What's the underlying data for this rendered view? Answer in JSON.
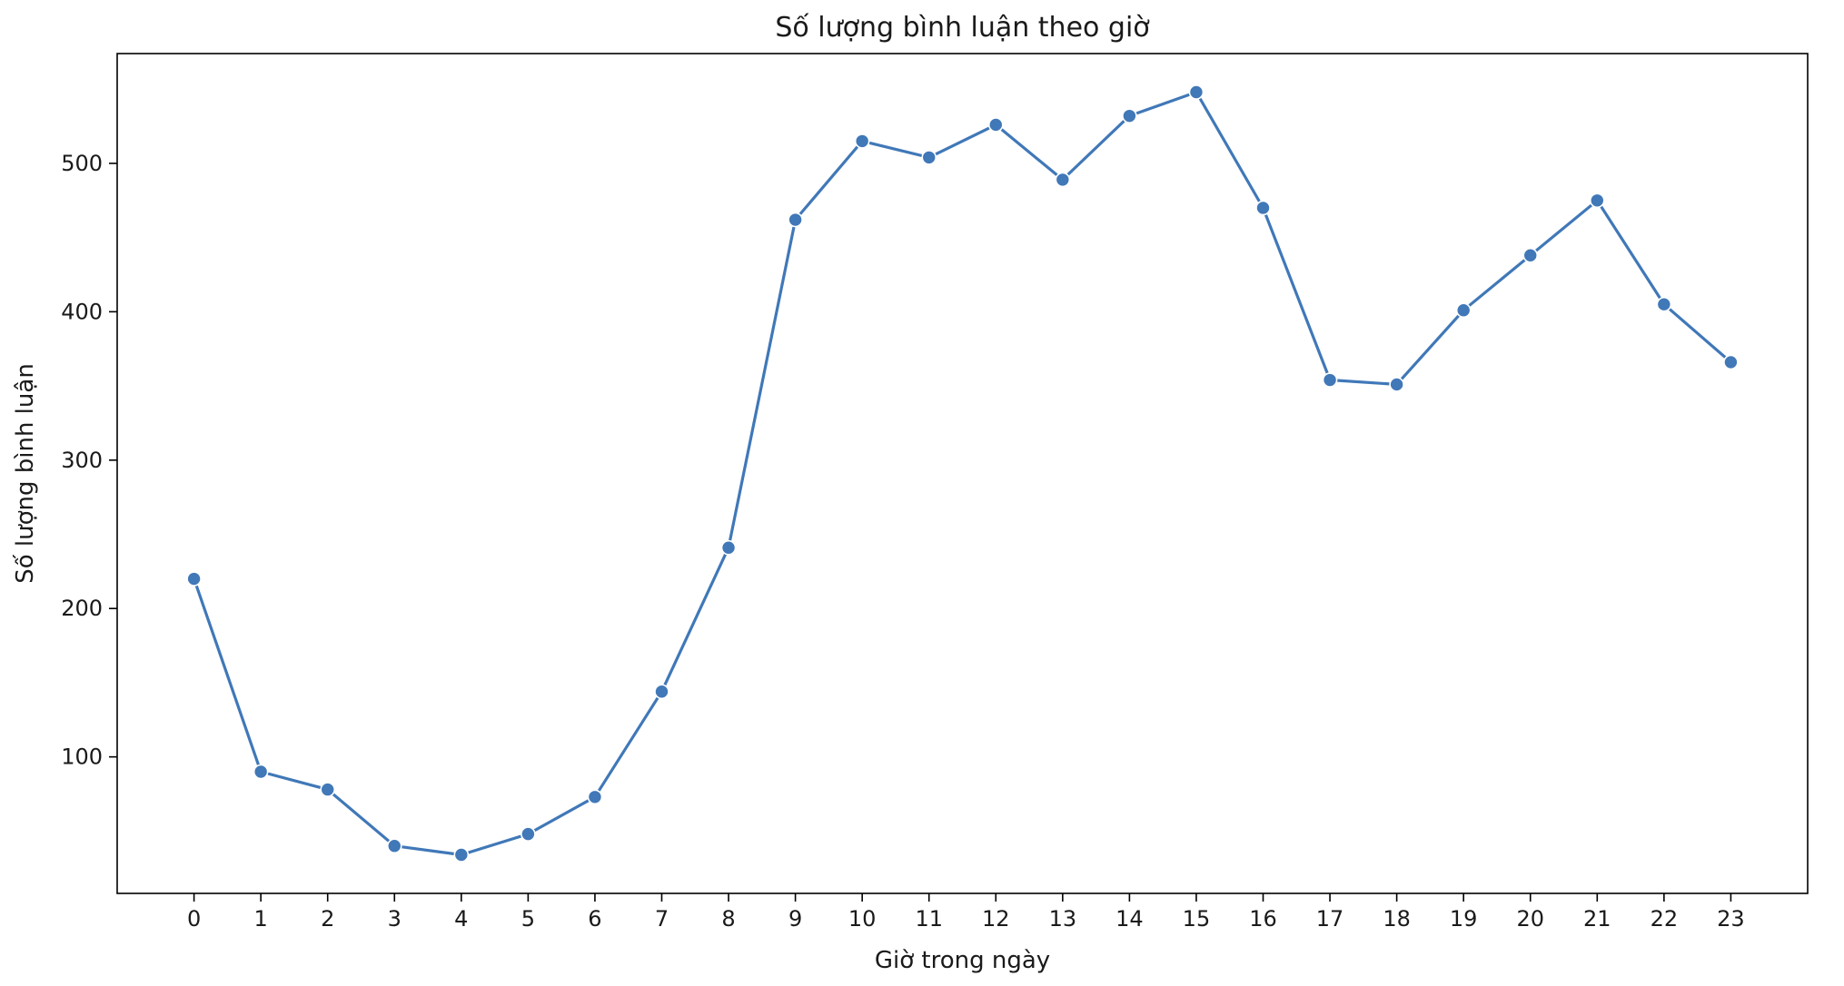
{
  "chart_data": {
    "type": "line",
    "title": "Số lượng bình luận theo giờ",
    "xlabel": "Giờ trong ngày",
    "ylabel": "Số lượng bình luận",
    "x": [
      "0",
      "1",
      "2",
      "3",
      "4",
      "5",
      "6",
      "7",
      "8",
      "9",
      "10",
      "11",
      "12",
      "13",
      "14",
      "15",
      "16",
      "17",
      "18",
      "19",
      "20",
      "21",
      "22",
      "23"
    ],
    "series": [
      {
        "values": [
          220,
          90,
          78,
          40,
          34,
          48,
          73,
          144,
          241,
          462,
          515,
          504,
          526,
          489,
          532,
          548,
          470,
          354,
          351,
          401,
          438,
          475,
          405,
          366
        ],
        "color": "#4078b8"
      }
    ],
    "yticks": [
      "100",
      "200",
      "300",
      "400",
      "500"
    ],
    "xlim": [
      -1.15,
      24.15
    ],
    "ylim": [
      8,
      574
    ],
    "grid": false,
    "legend": "none",
    "markers": "circle"
  }
}
